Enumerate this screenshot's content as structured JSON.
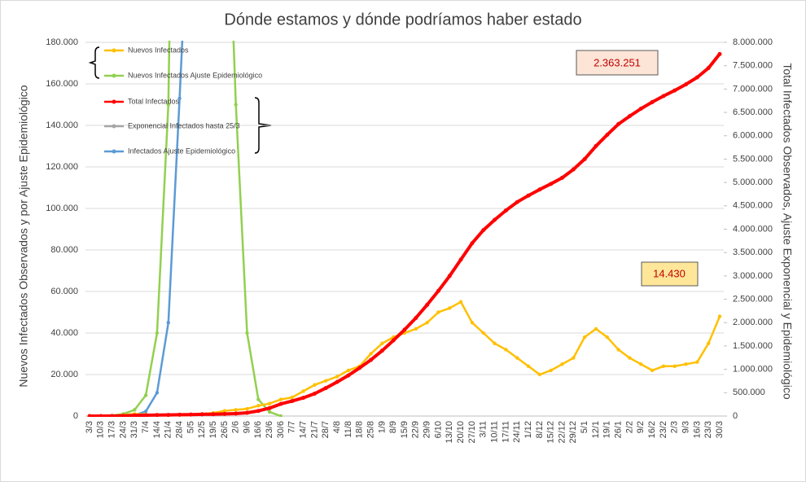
{
  "chart_data": {
    "type": "line",
    "title": "Dónde estamos y dónde podríamos haber estado",
    "y_label": "Nuevos Infectados Observados y por Ajuste Epidemiológico",
    "y2_label": "Total Infectados Observados, Ajuste Exponencial y Epidemiológico",
    "annotations": [
      "2.363.251",
      "14.430"
    ],
    "categories": [
      "3/3",
      "10/3",
      "17/3",
      "24/3",
      "31/3",
      "7/4",
      "14/4",
      "21/4",
      "28/4",
      "5/5",
      "12/5",
      "19/5",
      "26/5",
      "2/6",
      "9/6",
      "16/6",
      "23/6",
      "30/6",
      "7/7",
      "14/7",
      "21/7",
      "28/7",
      "4/8",
      "11/8",
      "18/8",
      "25/8",
      "1/9",
      "8/9",
      "15/9",
      "22/9",
      "29/9",
      "6/10",
      "13/10",
      "20/10",
      "27/10",
      "3/11",
      "10/11",
      "17/11",
      "24/11",
      "1/12",
      "8/12",
      "15/12",
      "22/12",
      "29/12",
      "5/1",
      "12/1",
      "19/1",
      "26/1",
      "2/2",
      "9/2",
      "16/2",
      "23/2",
      "2/3",
      "9/3",
      "16/3",
      "23/3",
      "30/3"
    ],
    "series": [
      {
        "name": "Nuevos Infectados",
        "color": "#ffc000",
        "values": [
          0,
          10,
          100,
          500,
          1000,
          800,
          500,
          300,
          500,
          700,
          1000,
          1500,
          2500,
          3000,
          3500,
          5000,
          6000,
          8000,
          9000,
          12000,
          15000,
          17000,
          19000,
          22000,
          24000,
          30000,
          35000,
          38000,
          40000,
          42000,
          45000,
          50000,
          52000,
          55000,
          45000,
          40000,
          35000,
          32000,
          28000,
          24000,
          20000,
          22000,
          25000,
          28000,
          38000,
          42000,
          38000,
          32000,
          28000,
          25000,
          22000,
          24000,
          24000,
          25000,
          26000,
          35000,
          48000
        ]
      },
      {
        "name": "Nuevos Infectados Ajuste Epidemiológico",
        "color": "#92d050",
        "values": [
          0,
          0,
          200,
          1000,
          3000,
          10000,
          40000,
          150000,
          500000,
          1000000,
          1000000,
          600000,
          300000,
          150000,
          40000,
          8000,
          2000,
          0,
          null,
          null,
          null,
          null,
          null,
          null,
          null,
          null,
          null,
          null,
          null,
          null,
          null,
          null,
          null,
          null,
          null,
          null,
          null,
          null,
          null,
          null,
          null,
          null,
          null,
          null,
          null,
          null,
          null,
          null,
          null,
          null,
          null,
          null,
          null,
          null,
          null,
          null,
          null
        ]
      },
      {
        "name": "Total Infectados",
        "color": "#ff0000",
        "axis": "y2",
        "values": [
          0,
          100,
          1000,
          5000,
          12000,
          18000,
          22000,
          25000,
          28000,
          32000,
          36000,
          40000,
          45000,
          52000,
          70000,
          110000,
          170000,
          260000,
          320000,
          390000,
          480000,
          600000,
          730000,
          870000,
          1030000,
          1200000,
          1400000,
          1620000,
          1850000,
          2100000,
          2380000,
          2680000,
          3000000,
          3350000,
          3700000,
          3980000,
          4200000,
          4400000,
          4580000,
          4720000,
          4850000,
          4970000,
          5100000,
          5280000,
          5500000,
          5780000,
          6020000,
          6250000,
          6420000,
          6580000,
          6720000,
          6850000,
          6970000,
          7100000,
          7250000,
          7450000,
          7750000
        ]
      },
      {
        "name": "Exponencial Infectados hasta 25/3",
        "color": "#a5a5a5",
        "axis": "y2",
        "values": [
          0,
          50,
          400,
          2500,
          null,
          null,
          null,
          null,
          null,
          null,
          null,
          null,
          null,
          null,
          null,
          null,
          null,
          null,
          null,
          null,
          null,
          null,
          null,
          null,
          null,
          null,
          null,
          null,
          null,
          null,
          null,
          null,
          null,
          null,
          null,
          null,
          null,
          null,
          null,
          null,
          null,
          null,
          null,
          null,
          null,
          null,
          null,
          null,
          null,
          null,
          null,
          null,
          null,
          null,
          null,
          null,
          null
        ]
      },
      {
        "name": "Infectados Ajuste Epidemiológico",
        "color": "#5b9bd5",
        "axis": "y2",
        "values": [
          0,
          0,
          1000,
          5000,
          20000,
          100000,
          500000,
          2000000,
          6800000,
          12000000,
          null,
          null,
          null,
          null,
          null,
          null,
          null,
          null,
          null,
          null,
          null,
          null,
          null,
          null,
          null,
          null,
          null,
          null,
          null,
          null,
          null,
          null,
          null,
          null,
          null,
          null,
          null,
          null,
          null,
          null,
          null,
          null,
          null,
          null,
          null,
          null,
          null,
          null,
          null,
          null,
          null,
          null,
          null,
          null,
          null,
          null,
          null
        ]
      }
    ],
    "ylim": [
      0,
      180000
    ],
    "yticks": [
      0,
      {
        "value": 20000,
        "label": "20.000"
      },
      {
        "value": 40000,
        "label": "40.000"
      },
      {
        "value": 60000,
        "label": "60.000"
      },
      {
        "value": 80000,
        "label": "80.000"
      },
      {
        "value": 100000,
        "label": "100.000"
      },
      {
        "value": 120000,
        "label": "120.000"
      },
      {
        "value": 140000,
        "label": "140.000"
      },
      {
        "value": 160000,
        "label": "160.000"
      },
      {
        "value": 180000,
        "label": "180.000"
      }
    ],
    "y2lim": [
      0,
      8000000
    ],
    "y2ticks": [
      0,
      {
        "value": 500000,
        "label": "500.000"
      },
      {
        "value": 1000000,
        "label": "1.000.000"
      },
      {
        "value": 1500000,
        "label": "1.500.000"
      },
      {
        "value": 2000000,
        "label": "2.000.000"
      },
      {
        "value": 2500000,
        "label": "2.500.000"
      },
      {
        "value": 3000000,
        "label": "3.000.000"
      },
      {
        "value": 3500000,
        "label": "3.500.000"
      },
      {
        "value": 4000000,
        "label": "4.000.000"
      },
      {
        "value": 4500000,
        "label": "4.500.000"
      },
      {
        "value": 5000000,
        "label": "5.000.000"
      },
      {
        "value": 5500000,
        "label": "5.500.000"
      },
      {
        "value": 6000000,
        "label": "6.000.000"
      },
      {
        "value": 6500000,
        "label": "6.500.000"
      },
      {
        "value": 7000000,
        "label": "7.000.000"
      },
      {
        "value": 7500000,
        "label": "7.500.000"
      },
      {
        "value": 8000000,
        "label": "8.000.000"
      }
    ],
    "grid": true
  }
}
